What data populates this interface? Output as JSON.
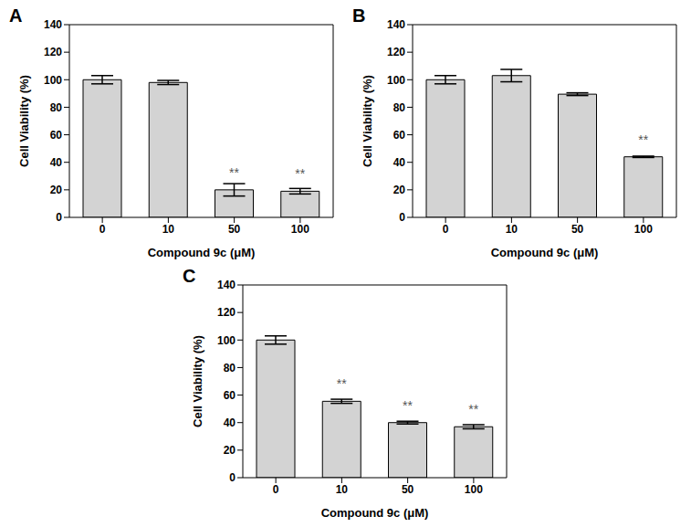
{
  "chart_data": [
    {
      "type": "bar",
      "title": "A",
      "x_label": "Compound 9c (μM)",
      "y_label": "Cell Viability (%)",
      "categories": [
        "0",
        "10",
        "50",
        "100"
      ],
      "values": [
        100,
        98,
        20,
        19
      ],
      "error": [
        3,
        1.5,
        4.5,
        2
      ],
      "color": "#d3d3d3",
      "ylim": [
        0,
        140
      ],
      "yticks": [
        0,
        20,
        40,
        60,
        80,
        100,
        120,
        140
      ],
      "annotations": [
        {
          "category": "50",
          "text": "**"
        },
        {
          "category": "100",
          "text": "**"
        }
      ]
    },
    {
      "type": "bar",
      "title": "B",
      "x_label": "Compound 9c (μM)",
      "y_label": "Cell Viability (%)",
      "categories": [
        "0",
        "10",
        "50",
        "100"
      ],
      "values": [
        100,
        103,
        89.5,
        44
      ],
      "error": [
        3,
        4.5,
        1,
        0.5
      ],
      "color": "#d3d3d3",
      "ylim": [
        0,
        140
      ],
      "yticks": [
        0,
        20,
        40,
        60,
        80,
        100,
        120,
        140
      ],
      "annotations": [
        {
          "category": "100",
          "text": "**"
        }
      ]
    },
    {
      "type": "bar",
      "title": "C",
      "x_label": "Compound 9c (μM)",
      "y_label": "Cell Viability (%)",
      "categories": [
        "0",
        "10",
        "50",
        "100"
      ],
      "values": [
        100,
        55.5,
        40,
        37
      ],
      "error": [
        3,
        1.5,
        1,
        1.5
      ],
      "color": "#d3d3d3",
      "ylim": [
        0,
        140
      ],
      "yticks": [
        0,
        20,
        40,
        60,
        80,
        100,
        120,
        140
      ],
      "annotations": [
        {
          "category": "10",
          "text": "**"
        },
        {
          "category": "50",
          "text": "**"
        },
        {
          "category": "100",
          "text": "**"
        }
      ]
    }
  ]
}
